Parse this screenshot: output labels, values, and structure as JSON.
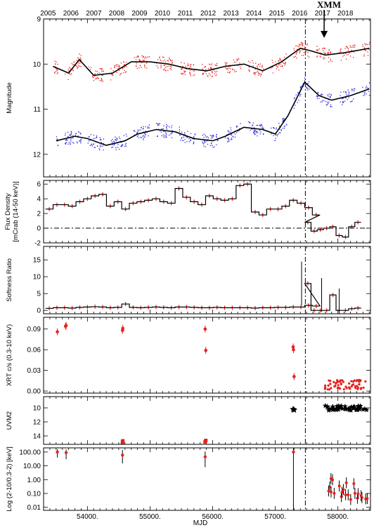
{
  "figure": {
    "xlabel": "MJD",
    "year_labels": [
      "2005",
      "2006",
      "2007",
      "2008",
      "2009",
      "2010",
      "2011",
      "2012",
      "2013",
      "2014",
      "2015",
      "2016",
      "2017",
      "2018"
    ],
    "xmm_label": "XMM",
    "x_tick_labels": [
      "54000.",
      "55000.",
      "56000.",
      "57000.",
      "58000."
    ],
    "colors": {
      "red": "#e8201c",
      "blue": "#2a2ae0",
      "black": "#000000"
    }
  },
  "chart_data": [
    {
      "type": "scatter",
      "ylabel": "Magnitude",
      "yticks": [
        "9",
        "10",
        "11",
        "12"
      ],
      "ylim": [
        12.5,
        9.0
      ],
      "xlim": [
        53300,
        58520
      ],
      "event_line_mjd": 57480,
      "xmm_mjd": 57780,
      "series": [
        {
          "color": "red",
          "trend_x": [
            53450,
            53700,
            53870,
            54100,
            54400,
            54700,
            55000,
            55300,
            55600,
            55900,
            56200,
            56500,
            56800,
            57100,
            57400,
            57550,
            57800,
            58100,
            58500
          ],
          "trend_y": [
            10.05,
            10.2,
            9.9,
            10.25,
            10.2,
            9.95,
            9.95,
            10.0,
            10.1,
            10.15,
            10.05,
            10.0,
            10.15,
            9.95,
            9.65,
            9.7,
            9.8,
            9.75,
            9.65
          ]
        },
        {
          "color": "blue",
          "trend_x": [
            53500,
            53800,
            54000,
            54300,
            54600,
            54800,
            55100,
            55400,
            55700,
            56000,
            56200,
            56500,
            56800,
            57000,
            57200,
            57470,
            57700,
            57900,
            58200,
            58500
          ],
          "trend_y": [
            11.7,
            11.6,
            11.65,
            11.8,
            11.7,
            11.55,
            11.45,
            11.5,
            11.65,
            11.7,
            11.6,
            11.4,
            11.45,
            11.55,
            11.15,
            10.4,
            10.7,
            10.8,
            10.7,
            10.55
          ]
        }
      ]
    },
    {
      "type": "line",
      "ylabel": "Flux Density\n[mCrab (14-50 keV)]",
      "yticks": [
        "-2",
        "0",
        "2",
        "4",
        "6"
      ],
      "ylim": [
        -2,
        6.5
      ],
      "values": [
        2.6,
        3.2,
        3.2,
        3.0,
        3.6,
        4.0,
        4.4,
        4.6,
        3.0,
        3.6,
        2.6,
        3.4,
        3.6,
        3.8,
        4.0,
        3.6,
        3.4,
        5.4,
        4.2,
        3.6,
        3.2,
        4.4,
        4.0,
        3.8,
        4.0,
        5.8,
        6.0,
        2.2,
        1.8,
        2.6,
        2.6,
        3.0,
        3.8,
        3.4,
        2.8,
        1.8,
        0.8,
        -0.4,
        -0.2,
        0.0,
        0.2,
        -1.0,
        -1.2,
        0.2,
        0.8
      ],
      "bin_start": 53330,
      "bin_width": 122
    },
    {
      "type": "line",
      "ylabel": "Softness Ratio",
      "yticks": [
        "0",
        "5",
        "10",
        "15"
      ],
      "ylim": [
        -1,
        19
      ],
      "values": [
        0.6,
        0.8,
        0.8,
        0.7,
        0.9,
        1.0,
        1.1,
        1.0,
        0.8,
        0.9,
        1.9,
        0.9,
        0.8,
        0.9,
        1.0,
        0.9,
        0.8,
        1.0,
        1.0,
        0.9,
        0.8,
        0.8,
        0.9,
        0.8,
        0.8,
        0.8,
        0.8,
        0.7,
        0.8,
        0.8,
        0.9,
        0.9,
        1.0,
        1.0,
        1.5,
        1.3,
        8.0,
        0,
        0,
        0,
        4.6,
        0,
        0,
        0.5,
        0.7
      ],
      "big_error_bars": [
        {
          "x": 57420,
          "y": 8.0,
          "err": 6.5
        },
        {
          "x": 57740,
          "y": 4.6,
          "err": 5.0
        },
        {
          "x": 58020,
          "y": 0.5,
          "err": 6.0
        }
      ]
    },
    {
      "type": "scatter",
      "ylabel": "XRT c/s (0.3-10 keV)",
      "yticks": [
        "0.00",
        "0.03",
        "0.06",
        "0.09"
      ],
      "ylim": [
        -0.003,
        0.107
      ],
      "points": [
        {
          "x": 53520,
          "y": 0.086
        },
        {
          "x": 53650,
          "y": 0.094
        },
        {
          "x": 53660,
          "y": 0.095
        },
        {
          "x": 54560,
          "y": 0.088
        },
        {
          "x": 54565,
          "y": 0.091
        },
        {
          "x": 55880,
          "y": 0.09
        },
        {
          "x": 55890,
          "y": 0.059
        },
        {
          "x": 57285,
          "y": 0.064
        },
        {
          "x": 57290,
          "y": 0.06
        },
        {
          "x": 57300,
          "y": 0.021
        }
      ]
    },
    {
      "type": "scatter",
      "ylabel": "UVM2",
      "yticks": [
        "10",
        "12",
        "14"
      ],
      "ylim": [
        15.2,
        8.4
      ],
      "points": [
        {
          "x": 54560,
          "y": 14.9
        },
        {
          "x": 54565,
          "y": 14.7
        },
        {
          "x": 55880,
          "y": 14.85
        },
        {
          "x": 55890,
          "y": 14.65
        }
      ],
      "star_points": [
        {
          "x": 57285,
          "y": 10.2
        },
        {
          "x": 57300,
          "y": 10.3
        }
      ]
    },
    {
      "type": "scatter",
      "ylabel": "Log (2-10/0.3-2) [keV]",
      "yticks": [
        "0.01",
        "0.10",
        "1.00",
        "10.00",
        "100.00"
      ],
      "ylim": [
        0.006,
        200
      ],
      "points": [
        {
          "x": 53520,
          "y": 100,
          "lo": 40,
          "hi": 160
        },
        {
          "x": 53660,
          "y": 90,
          "lo": 30,
          "hi": 150
        },
        {
          "x": 54560,
          "y": 60,
          "lo": 15,
          "hi": 140
        },
        {
          "x": 55880,
          "y": 45,
          "lo": 8,
          "hi": 110
        },
        {
          "x": 57290,
          "y": 100,
          "lo": 0.006,
          "hi": 200
        }
      ]
    }
  ]
}
